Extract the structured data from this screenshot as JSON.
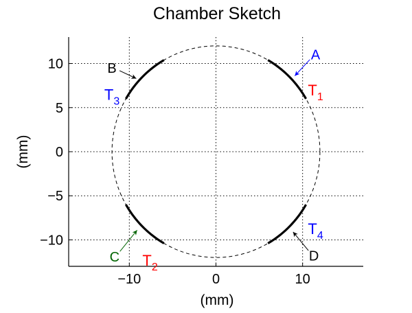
{
  "chart_data": {
    "type": "scatter",
    "title": "Chamber Sketch",
    "xlabel": "(mm)",
    "ylabel": "(mm)",
    "xlim": [
      -17,
      17
    ],
    "ylim": [
      -13,
      13
    ],
    "xticks": [
      {
        "value": -10,
        "label": "−10"
      },
      {
        "value": 0,
        "label": "0"
      },
      {
        "value": 10,
        "label": "10"
      }
    ],
    "yticks": [
      {
        "value": 10,
        "label": "10"
      },
      {
        "value": 5,
        "label": "5"
      },
      {
        "value": 0,
        "label": "0"
      },
      {
        "value": -5,
        "label": "−5"
      },
      {
        "value": -10,
        "label": "−10"
      }
    ],
    "grid": true,
    "circle": {
      "center": [
        0,
        0
      ],
      "radius": 12,
      "style": "dashed",
      "color": "#000000"
    },
    "arcs": [
      {
        "start_deg": 30,
        "end_deg": 60,
        "color": "#000000"
      },
      {
        "start_deg": 120,
        "end_deg": 150,
        "color": "#000000"
      },
      {
        "start_deg": 210,
        "end_deg": 240,
        "color": "#000000"
      },
      {
        "start_deg": 300,
        "end_deg": 330,
        "color": "#000000"
      }
    ],
    "annotations": [
      {
        "text": "A",
        "color": "#0000ff",
        "at": [
          11.5,
          11
        ],
        "arrow_to": [
          9.1,
          8.6
        ]
      },
      {
        "text": "B",
        "color": "#000000",
        "at": [
          -12,
          9.5
        ],
        "arrow_to": [
          -9.2,
          8.3
        ]
      },
      {
        "text": "C",
        "color": "#006400",
        "at": [
          -11.7,
          -11.9
        ],
        "arrow_to": [
          -9.1,
          -8.9
        ]
      },
      {
        "text": "D",
        "color": "#000000",
        "at": [
          11.3,
          -11.8
        ],
        "arrow_to": [
          8.9,
          -9.1
        ]
      }
    ],
    "transducer_labels": [
      {
        "text": "T",
        "sub": "1",
        "color": "#ff0000",
        "at": [
          11.5,
          7
        ]
      },
      {
        "text": "T",
        "sub": "2",
        "color": "#ff0000",
        "at": [
          -7.6,
          -12.3
        ]
      },
      {
        "text": "T",
        "sub": "3",
        "color": "#0000ff",
        "at": [
          -12,
          6.5
        ]
      },
      {
        "text": "T",
        "sub": "4",
        "color": "#0000ff",
        "at": [
          11.5,
          -8.7
        ]
      }
    ]
  }
}
